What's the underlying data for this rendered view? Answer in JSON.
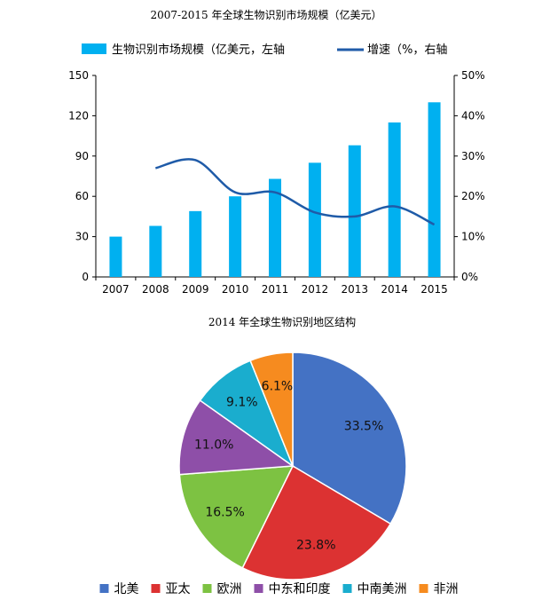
{
  "chart_data": [
    {
      "type": "bar",
      "title": "2007-2015 年全球生物识别市场规模（亿美元）",
      "categories": [
        "2007",
        "2008",
        "2009",
        "2010",
        "2011",
        "2012",
        "2013",
        "2014",
        "2015"
      ],
      "series": [
        {
          "name": "生物识别市场规模（亿美元，左轴",
          "type": "bar",
          "axis": "left",
          "color": "#00B0F0",
          "values": [
            30,
            38,
            49,
            60,
            73,
            85,
            98,
            115,
            130
          ]
        },
        {
          "name": "增速（%，右轴",
          "type": "line",
          "axis": "right",
          "color": "#1F5BA8",
          "values": [
            null,
            27,
            29,
            21,
            21,
            16,
            15,
            17.5,
            13
          ]
        }
      ],
      "y_left": {
        "min": 0,
        "max": 150,
        "ticks": [
          "0",
          "30",
          "60",
          "90",
          "120",
          "150"
        ]
      },
      "y_right": {
        "min": 0,
        "max": 50,
        "ticks": [
          "0%",
          "10%",
          "20%",
          "30%",
          "40%",
          "50%"
        ]
      },
      "legend_position": "top"
    },
    {
      "type": "pie",
      "title": "2014 年全球生物识别地区结构",
      "slices": [
        {
          "name": "北美",
          "value": 33.5,
          "label": "33.5%",
          "color": "#4472C4"
        },
        {
          "name": "亚太",
          "value": 23.8,
          "label": "23.8%",
          "color": "#DC3232"
        },
        {
          "name": "欧洲",
          "value": 16.5,
          "label": "16.5%",
          "color": "#7DC242"
        },
        {
          "name": "中东和印度",
          "value": 11.0,
          "label": "11.0%",
          "color": "#8E4FA8"
        },
        {
          "name": "中南美洲",
          "value": 9.1,
          "label": "9.1%",
          "color": "#1AADCE"
        },
        {
          "name": "非洲",
          "value": 6.1,
          "label": "6.1%",
          "color": "#F68B1F"
        }
      ],
      "legend_position": "bottom"
    }
  ]
}
